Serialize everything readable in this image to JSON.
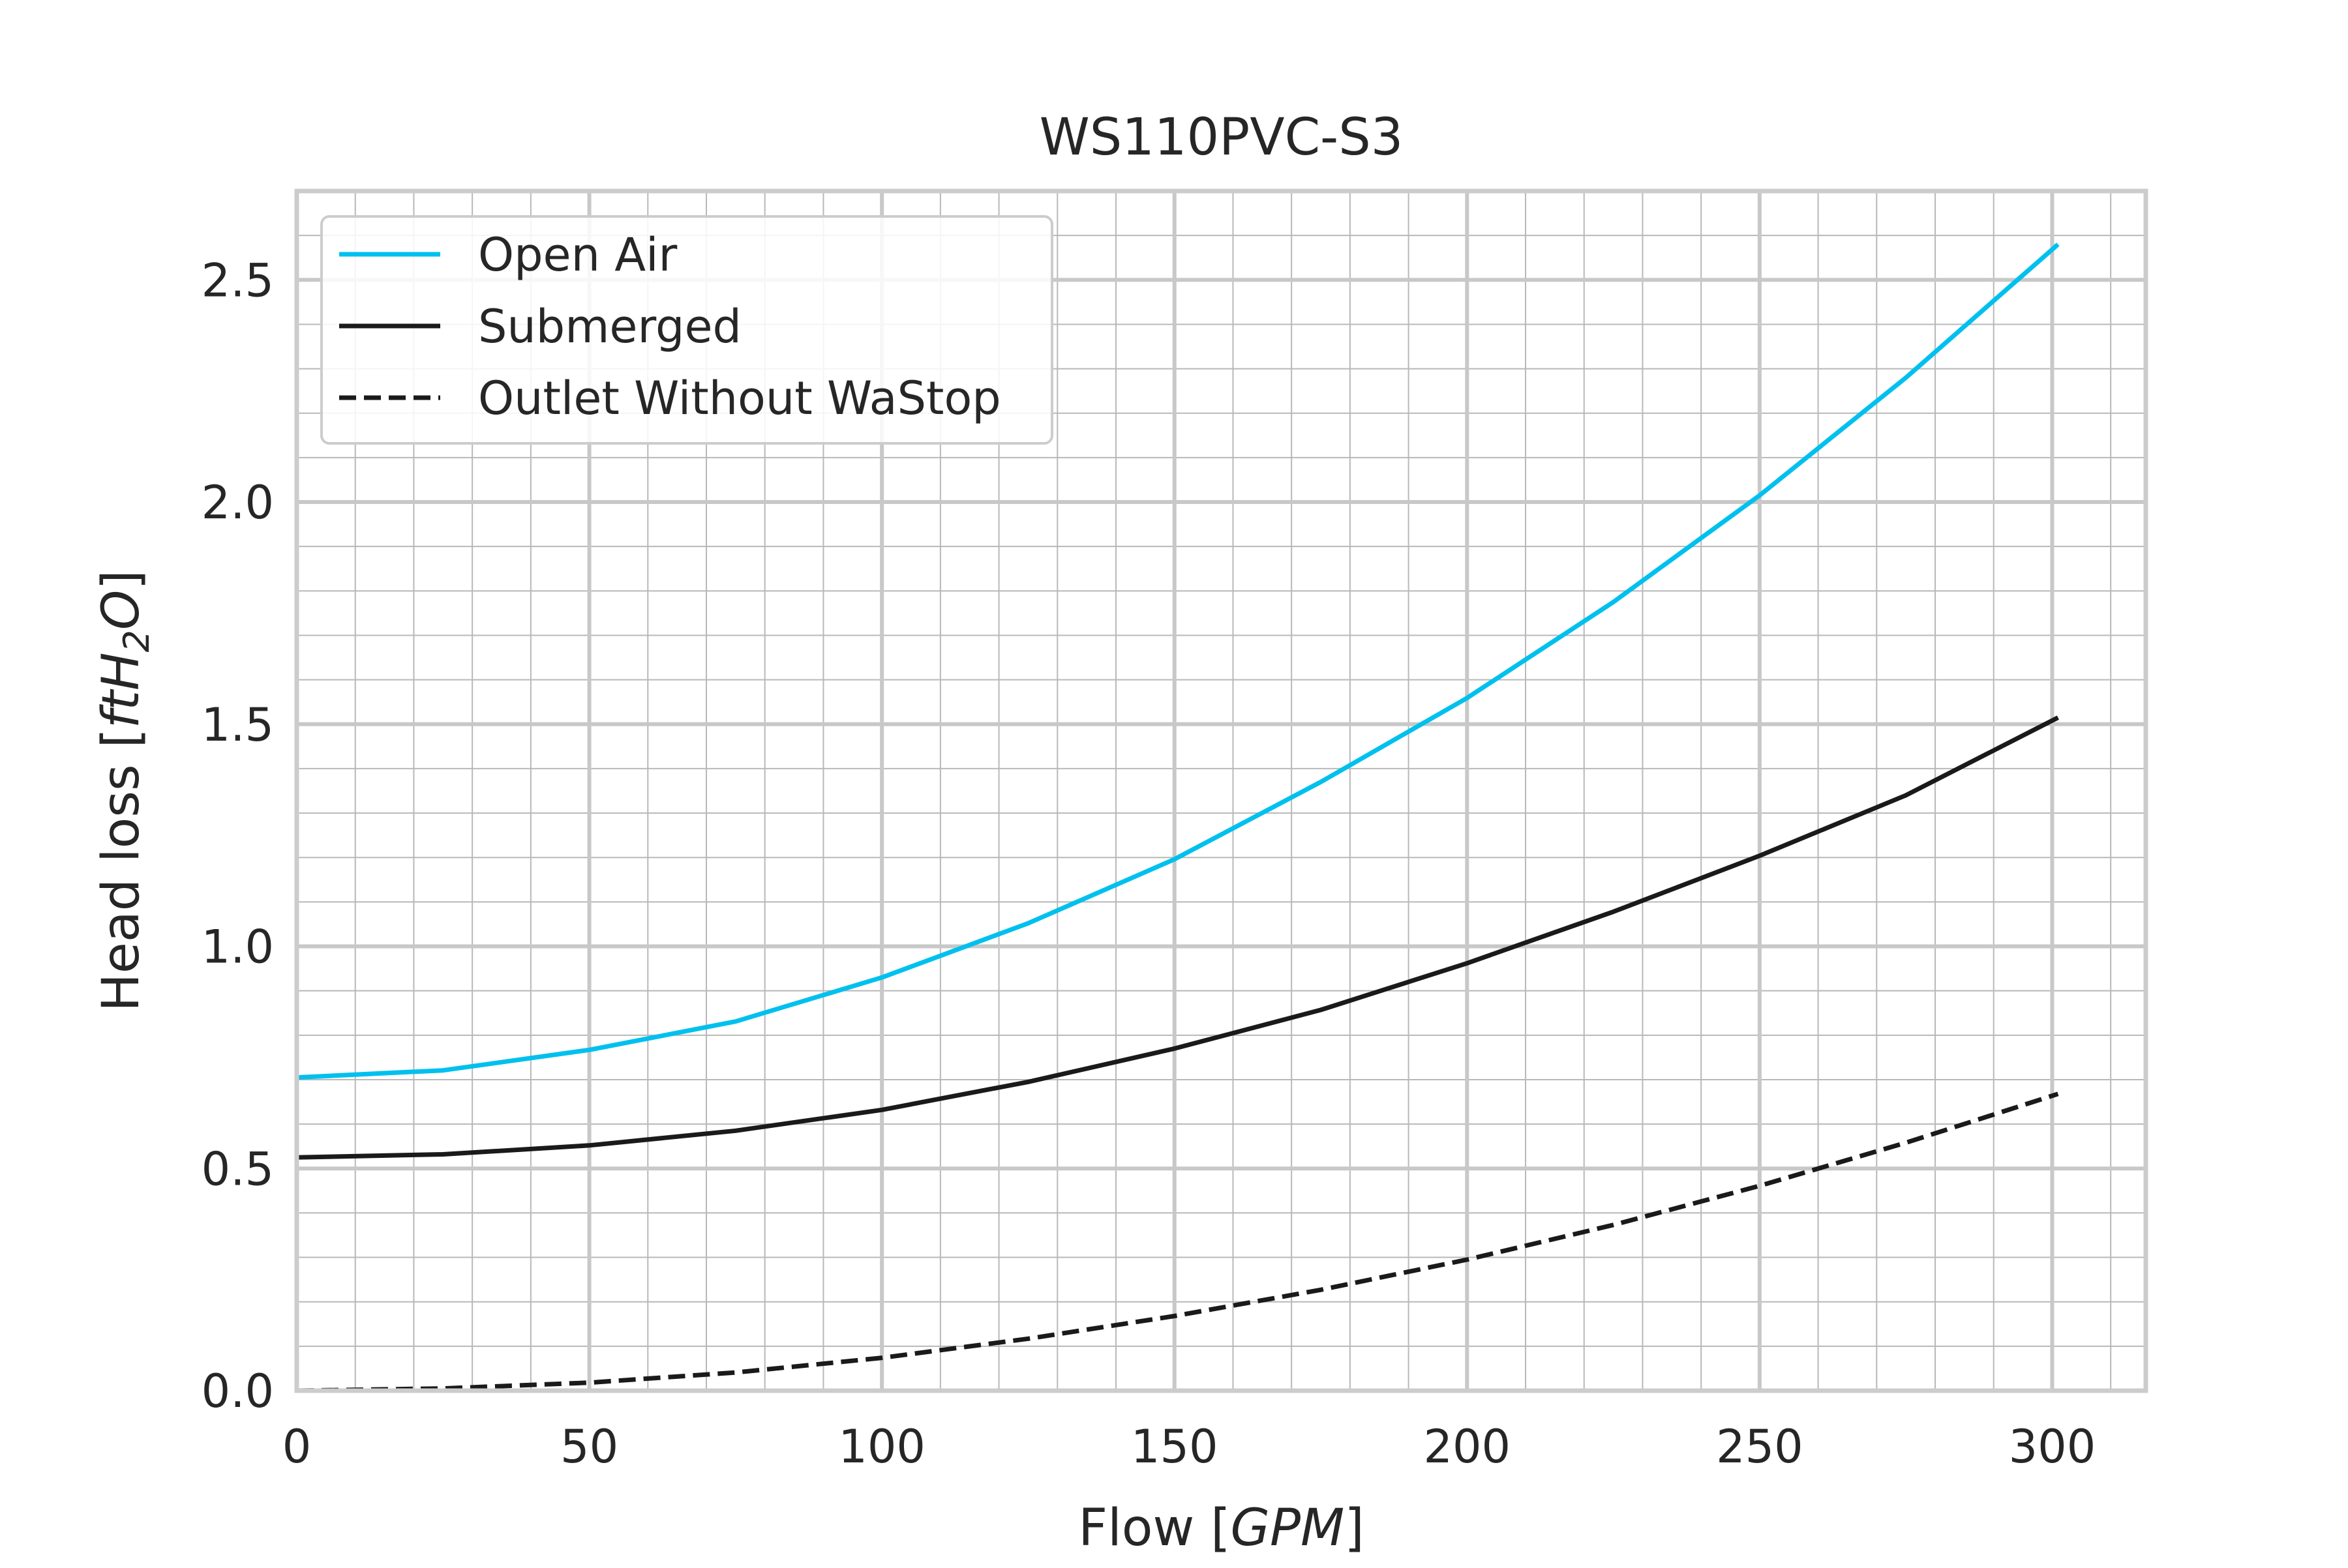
{
  "chart_data": {
    "type": "line",
    "title": "WS110PVC-S3",
    "xlabel": "Flow [",
    "xlabel_unit": "GPM",
    "xlabel_close": "]",
    "ylabel": "Head loss [",
    "ylabel_unit_main": "ftH",
    "ylabel_unit_sub": "2",
    "ylabel_unit_tail": "O",
    "ylabel_close": "]",
    "xlim": [
      0,
      316
    ],
    "ylim": [
      0,
      2.7
    ],
    "xticks": [
      0,
      50,
      100,
      150,
      200,
      250,
      300
    ],
    "xtick_labels": [
      "0",
      "50",
      "100",
      "150",
      "200",
      "250",
      "300"
    ],
    "yticks": [
      0.0,
      0.5,
      1.0,
      1.5,
      2.0,
      2.5
    ],
    "ytick_labels": [
      "0.0",
      "0.5",
      "1.0",
      "1.5",
      "2.0",
      "2.5"
    ],
    "grid": true,
    "minor_grid": true,
    "legend_position": "top-left",
    "series": [
      {
        "name": "Open Air",
        "color": "#00c0ee",
        "style": "solid",
        "x": [
          0,
          25,
          50,
          75,
          100,
          125,
          150,
          175,
          200,
          225,
          250,
          275,
          301
        ],
        "y": [
          0.705,
          0.721,
          0.767,
          0.831,
          0.93,
          1.052,
          1.196,
          1.37,
          1.559,
          1.775,
          2.015,
          2.28,
          2.58
        ]
      },
      {
        "name": "Submerged",
        "color": "#1a1a1a",
        "style": "solid",
        "x": [
          0,
          25,
          50,
          75,
          100,
          125,
          150,
          175,
          200,
          225,
          250,
          275,
          301
        ],
        "y": [
          0.525,
          0.532,
          0.552,
          0.585,
          0.632,
          0.695,
          0.77,
          0.857,
          0.962,
          1.078,
          1.204,
          1.34,
          1.515
        ]
      },
      {
        "name": "Outlet Without WaStop",
        "color": "#1a1a1a",
        "style": "dashed",
        "x": [
          0,
          25,
          50,
          75,
          100,
          125,
          150,
          175,
          200,
          225,
          250,
          275,
          301
        ],
        "y": [
          0.0,
          0.005,
          0.018,
          0.041,
          0.074,
          0.117,
          0.168,
          0.227,
          0.295,
          0.373,
          0.461,
          0.558,
          0.668
        ]
      }
    ]
  }
}
